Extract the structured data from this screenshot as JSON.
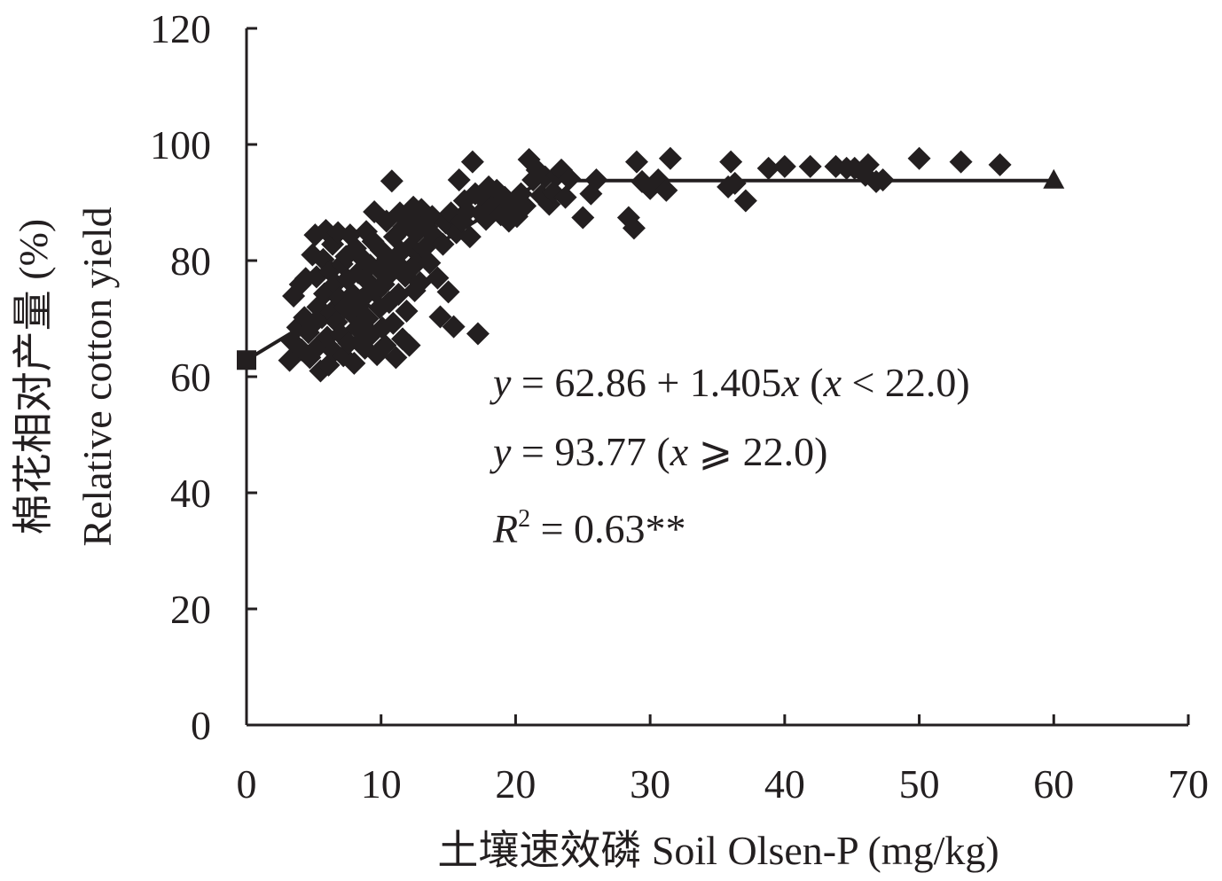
{
  "chart_data": {
    "type": "scatter",
    "xlim": [
      0,
      70
    ],
    "ylim": [
      0,
      120
    ],
    "x_ticks": [
      0,
      10,
      20,
      30,
      40,
      50,
      60,
      70
    ],
    "y_ticks": [
      0,
      20,
      40,
      60,
      80,
      100,
      120
    ],
    "xlabel": "土壤速效磷  Soil Olsen-P (mg/kg)",
    "ylabel_cn": "棉花相对产量 (%)",
    "ylabel_en": "Relative cotton yield",
    "grid": false,
    "colors": {
      "ink": "#231f20"
    },
    "series": [
      {
        "marker": "diamond",
        "points": [
          [
            3.2,
            62.8
          ],
          [
            3.4,
            66.1
          ],
          [
            3.5,
            73.9
          ],
          [
            3.8,
            68.5
          ],
          [
            4.0,
            75.9
          ],
          [
            4.1,
            64.6
          ],
          [
            4.3,
            70.2
          ],
          [
            4.4,
            76.9
          ],
          [
            4.6,
            67.6
          ],
          [
            4.7,
            63.3
          ],
          [
            4.9,
            81.0
          ],
          [
            5.0,
            69.2
          ],
          [
            5.1,
            84.4
          ],
          [
            5.2,
            77.2
          ],
          [
            5.3,
            72.0
          ],
          [
            5.4,
            65.4
          ],
          [
            5.5,
            61.0
          ],
          [
            5.6,
            70.2
          ],
          [
            5.7,
            80.2
          ],
          [
            5.8,
            74.3
          ],
          [
            5.9,
            85.2
          ],
          [
            6.0,
            66.8
          ],
          [
            6.1,
            62.0
          ],
          [
            6.2,
            78.2
          ],
          [
            6.3,
            71.1
          ],
          [
            6.4,
            82.8
          ],
          [
            6.5,
            64.3
          ],
          [
            6.6,
            76.0
          ],
          [
            6.7,
            69.4
          ],
          [
            6.8,
            84.8
          ],
          [
            6.9,
            73.5
          ],
          [
            7.0,
            67.3
          ],
          [
            7.1,
            79.4
          ],
          [
            7.2,
            63.6
          ],
          [
            7.3,
            71.9
          ],
          [
            7.4,
            80.7
          ],
          [
            7.5,
            76.8
          ],
          [
            7.6,
            65.8
          ],
          [
            7.7,
            84.4
          ],
          [
            7.8,
            70.9
          ],
          [
            7.9,
            74.2
          ],
          [
            8.0,
            62.3
          ],
          [
            8.1,
            82.1
          ],
          [
            8.2,
            68.4
          ],
          [
            8.3,
            77.9
          ],
          [
            8.4,
            72.3
          ],
          [
            8.5,
            66.1
          ],
          [
            8.6,
            80.4
          ],
          [
            8.7,
            73.6
          ],
          [
            8.8,
            64.9
          ],
          [
            8.9,
            85.0
          ],
          [
            9.0,
            70.0
          ],
          [
            9.1,
            76.2
          ],
          [
            9.2,
            79.2
          ],
          [
            9.3,
            67.3
          ],
          [
            9.4,
            83.3
          ],
          [
            9.5,
            88.4
          ],
          [
            9.6,
            74.5
          ],
          [
            9.7,
            63.8
          ],
          [
            9.8,
            78.6
          ],
          [
            9.9,
            71.9
          ],
          [
            10.0,
            81.8
          ],
          [
            10.1,
            68.4
          ],
          [
            10.2,
            75.9
          ],
          [
            10.3,
            65.4
          ],
          [
            10.4,
            86.8
          ],
          [
            10.5,
            80.4
          ],
          [
            10.6,
            72.8
          ],
          [
            10.7,
            77.8
          ],
          [
            10.8,
            93.7
          ],
          [
            10.9,
            69.2
          ],
          [
            11.0,
            84.1
          ],
          [
            11.1,
            63.3
          ],
          [
            11.2,
            79.5
          ],
          [
            11.3,
            74.2
          ],
          [
            11.4,
            88.2
          ],
          [
            11.5,
            81.5
          ],
          [
            11.6,
            66.5
          ],
          [
            11.7,
            85.8
          ],
          [
            11.8,
            77.3
          ],
          [
            11.9,
            71.3
          ],
          [
            12.0,
            86.5
          ],
          [
            12.1,
            65.4
          ],
          [
            12.2,
            82.4
          ],
          [
            12.3,
            78.8
          ],
          [
            12.4,
            89.2
          ],
          [
            12.5,
            74.8
          ],
          [
            12.6,
            84.7
          ],
          [
            12.7,
            87.1
          ],
          [
            12.8,
            80.0
          ],
          [
            12.9,
            76.2
          ],
          [
            13.0,
            88.8
          ],
          [
            13.2,
            82.1
          ],
          [
            13.4,
            85.8
          ],
          [
            13.6,
            79.6
          ],
          [
            13.8,
            87.6
          ],
          [
            14.0,
            84.1
          ],
          [
            14.2,
            77.0
          ],
          [
            14.4,
            70.3
          ],
          [
            14.6,
            82.8
          ],
          [
            14.8,
            86.5
          ],
          [
            15.0,
            74.6
          ],
          [
            15.2,
            88.2
          ],
          [
            15.4,
            68.6
          ],
          [
            15.6,
            84.8
          ],
          [
            15.8,
            93.9
          ],
          [
            16.0,
            86.8
          ],
          [
            16.2,
            90.3
          ],
          [
            16.4,
            88.5
          ],
          [
            16.6,
            84.1
          ],
          [
            16.8,
            97.0
          ],
          [
            17.0,
            91.5
          ],
          [
            17.2,
            67.4
          ],
          [
            17.4,
            88.2
          ],
          [
            17.6,
            90.6
          ],
          [
            17.8,
            87.1
          ],
          [
            18.0,
            92.7
          ],
          [
            18.3,
            89.4
          ],
          [
            18.6,
            92.1
          ],
          [
            18.9,
            87.9
          ],
          [
            19.2,
            90.9
          ],
          [
            19.5,
            86.8
          ],
          [
            19.8,
            89.1
          ],
          [
            20.1,
            87.6
          ],
          [
            20.4,
            91.5
          ],
          [
            20.7,
            89.4
          ],
          [
            21.0,
            97.4
          ],
          [
            21.3,
            93.9
          ],
          [
            21.6,
            95.6
          ],
          [
            21.9,
            91.2
          ],
          [
            22.2,
            94.4
          ],
          [
            22.5,
            89.7
          ],
          [
            22.8,
            91.8
          ],
          [
            23.1,
            94.7
          ],
          [
            23.4,
            95.6
          ],
          [
            23.7,
            90.9
          ],
          [
            24.0,
            94.1
          ],
          [
            25.0,
            87.4
          ],
          [
            25.6,
            91.5
          ],
          [
            26.0,
            93.9
          ],
          [
            28.4,
            87.4
          ],
          [
            28.8,
            85.6
          ],
          [
            29.0,
            97.0
          ],
          [
            29.4,
            93.6
          ],
          [
            30.0,
            92.4
          ],
          [
            30.6,
            93.9
          ],
          [
            31.2,
            92.1
          ],
          [
            31.5,
            97.6
          ],
          [
            35.8,
            92.7
          ],
          [
            36.0,
            97.0
          ],
          [
            36.3,
            93.3
          ],
          [
            37.1,
            90.3
          ],
          [
            38.8,
            95.9
          ],
          [
            40.0,
            96.2
          ],
          [
            41.9,
            96.2
          ],
          [
            43.8,
            96.2
          ],
          [
            44.6,
            95.9
          ],
          [
            45.2,
            95.9
          ],
          [
            46.0,
            94.7
          ],
          [
            46.2,
            96.5
          ],
          [
            46.8,
            93.6
          ],
          [
            47.3,
            93.9
          ],
          [
            50.0,
            97.6
          ],
          [
            53.1,
            97.0
          ],
          [
            56.0,
            96.5
          ]
        ]
      },
      {
        "marker": "line",
        "points": [
          [
            0,
            62.86
          ],
          [
            22.0,
            93.77
          ],
          [
            60,
            93.77
          ]
        ]
      }
    ],
    "endpoints": [
      {
        "marker": "square",
        "x": 0,
        "y": 62.86
      },
      {
        "marker": "triangle",
        "x": 60,
        "y": 93.77
      }
    ],
    "annotations": {
      "line1": {
        "y": "y",
        "eq": " = 62.86 + 1.405",
        "x": "x",
        "open": " (",
        "x2": "x",
        "cond": " < 22.0)"
      },
      "line2": {
        "y": "y",
        "eq": " = 93.77 (",
        "x": "x",
        "cond": " ⩾ 22.0)"
      },
      "line3": {
        "r": "R",
        "sup": "2",
        "val": " = 0.63**"
      }
    }
  }
}
